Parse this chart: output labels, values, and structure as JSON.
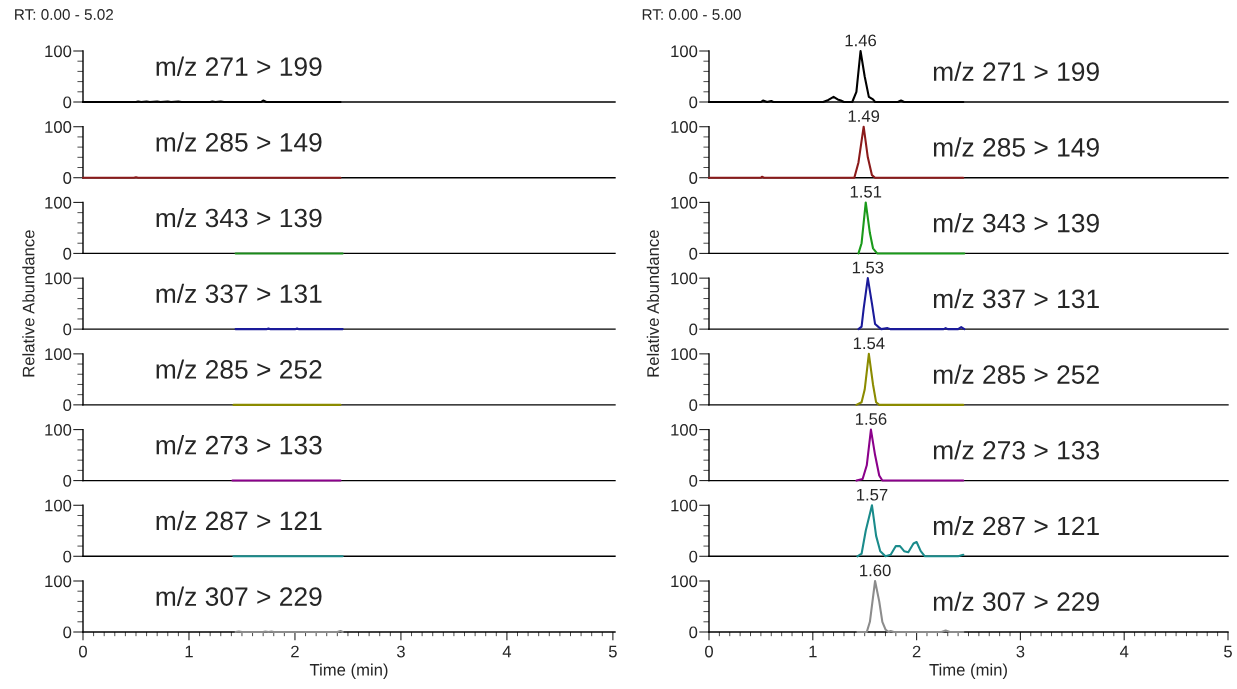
{
  "chart_data": [
    {
      "type": "line",
      "subtitle": "RT: 0.00 - 5.02",
      "xlim": [
        0,
        5.02
      ],
      "ylim": [
        0,
        100
      ],
      "yticks": [
        0,
        100
      ],
      "tick_labels": "y",
      "title": "m/z 271 > 199",
      "x": [
        0,
        0.5,
        0.52,
        0.55,
        0.6,
        0.63,
        0.7,
        0.73,
        0.8,
        0.83,
        0.9,
        0.93,
        1.2,
        1.22,
        1.25,
        1.3,
        1.33,
        1.68,
        1.7,
        1.73,
        2.43
      ],
      "series": [
        {
          "color": "#000000",
          "values": [
            0,
            0,
            1,
            0,
            1,
            0,
            1,
            0,
            1,
            0,
            1,
            0,
            0,
            1,
            0,
            1,
            0,
            0,
            3,
            0,
            0
          ]
        }
      ]
    },
    {
      "type": "line",
      "subtitle": "RT: 0.00 - 5.00",
      "xlim": [
        0,
        5.0
      ],
      "ylim": [
        0,
        100
      ],
      "yticks": [
        0,
        100
      ],
      "tick_labels": "y",
      "title": "m/z 271 > 199",
      "annotations": [
        {
          "text": "1.46",
          "x": 1.46,
          "y": 100
        }
      ],
      "x": [
        0,
        0.5,
        0.52,
        0.56,
        0.6,
        0.62,
        1.1,
        1.15,
        1.2,
        1.24,
        1.27,
        1.3,
        1.38,
        1.42,
        1.46,
        1.5,
        1.54,
        1.58,
        1.6,
        1.82,
        1.85,
        1.88,
        2.45
      ],
      "series": [
        {
          "color": "#000000",
          "values": [
            0,
            0,
            3,
            0,
            2,
            0,
            0,
            4,
            10,
            5,
            3,
            0,
            0,
            20,
            100,
            50,
            10,
            5,
            0,
            0,
            3,
            0,
            0
          ]
        }
      ]
    },
    {
      "type": "line",
      "xlim": [
        0,
        5.02
      ],
      "ylim": [
        0,
        100
      ],
      "yticks": [
        0,
        100
      ],
      "tick_labels": "y",
      "title": "m/z 285 > 149",
      "x": [
        0,
        0.48,
        0.5,
        0.52,
        2.43
      ],
      "series": [
        {
          "color": "#8b1a1a",
          "values": [
            0,
            0,
            1,
            0,
            0
          ]
        }
      ]
    },
    {
      "type": "line",
      "xlim": [
        0,
        5.0
      ],
      "ylim": [
        0,
        100
      ],
      "yticks": [
        0,
        100
      ],
      "tick_labels": "y",
      "title": "m/z 285 > 149",
      "annotations": [
        {
          "text": "1.49",
          "x": 1.49,
          "y": 100
        }
      ],
      "x": [
        0,
        0.5,
        0.51,
        0.53,
        1.4,
        1.44,
        1.49,
        1.53,
        1.57,
        1.6,
        2.45
      ],
      "series": [
        {
          "color": "#8b1a1a",
          "values": [
            0,
            0,
            2,
            0,
            0,
            30,
            100,
            40,
            5,
            0,
            0
          ]
        }
      ]
    },
    {
      "type": "line",
      "xlim": [
        0,
        5.02
      ],
      "ylim": [
        0,
        100
      ],
      "yticks": [
        0,
        100
      ],
      "tick_labels": "y",
      "title": "m/z 343 > 139",
      "x": [
        1.44,
        2.45
      ],
      "series": [
        {
          "color": "#1a8a1a",
          "values": [
            0,
            0
          ]
        }
      ]
    },
    {
      "type": "line",
      "xlim": [
        0,
        5.0
      ],
      "ylim": [
        0,
        100
      ],
      "yticks": [
        0,
        100
      ],
      "tick_labels": "y",
      "title": "m/z 343 > 139",
      "annotations": [
        {
          "text": "1.51",
          "x": 1.51,
          "y": 100
        }
      ],
      "x": [
        1.44,
        1.47,
        1.51,
        1.55,
        1.58,
        1.62,
        2.46
      ],
      "series": [
        {
          "color": "#1a9a1a",
          "values": [
            0,
            20,
            100,
            40,
            10,
            0,
            0
          ]
        }
      ]
    },
    {
      "type": "line",
      "ylabel": "Relative Abundance",
      "xlim": [
        0,
        5.02
      ],
      "ylim": [
        0,
        100
      ],
      "yticks": [
        0,
        100
      ],
      "tick_labels": "y",
      "title": "m/z 337 > 131",
      "x": [
        1.44,
        1.73,
        1.75,
        1.77,
        2.0,
        2.02,
        2.04,
        2.45
      ],
      "series": [
        {
          "color": "#1a1a9a",
          "values": [
            0,
            0,
            1,
            0,
            0,
            1,
            0,
            0
          ]
        }
      ]
    },
    {
      "type": "line",
      "ylabel": "Relative Abundance",
      "xlim": [
        0,
        5.0
      ],
      "ylim": [
        0,
        100
      ],
      "yticks": [
        0,
        100
      ],
      "tick_labels": "y",
      "title": "m/z 337 > 131",
      "annotations": [
        {
          "text": "1.53",
          "x": 1.53,
          "y": 100
        }
      ],
      "x": [
        1.44,
        1.47,
        1.49,
        1.53,
        1.57,
        1.6,
        1.64,
        1.66,
        1.72,
        1.75,
        2.26,
        2.28,
        2.3,
        2.4,
        2.43,
        2.46
      ],
      "series": [
        {
          "color": "#1a1a9a",
          "values": [
            0,
            5,
            40,
            100,
            50,
            10,
            3,
            0,
            2,
            0,
            0,
            2,
            0,
            0,
            4,
            0
          ]
        }
      ]
    },
    {
      "type": "line",
      "xlim": [
        0,
        5.02
      ],
      "ylim": [
        0,
        100
      ],
      "yticks": [
        0,
        100
      ],
      "tick_labels": "y",
      "title": "m/z 285 > 252",
      "x": [
        1.42,
        2.43
      ],
      "series": [
        {
          "color": "#8b8b00",
          "values": [
            0,
            0
          ]
        }
      ]
    },
    {
      "type": "line",
      "xlim": [
        0,
        5.0
      ],
      "ylim": [
        0,
        100
      ],
      "yticks": [
        0,
        100
      ],
      "tick_labels": "y",
      "title": "m/z 285 > 252",
      "annotations": [
        {
          "text": "1.54",
          "x": 1.54,
          "y": 100
        }
      ],
      "x": [
        1.42,
        1.47,
        1.5,
        1.54,
        1.58,
        1.61,
        1.64,
        2.45
      ],
      "series": [
        {
          "color": "#8b8b00",
          "values": [
            0,
            5,
            30,
            100,
            40,
            5,
            0,
            0
          ]
        }
      ]
    },
    {
      "type": "line",
      "xlim": [
        0,
        5.02
      ],
      "ylim": [
        0,
        100
      ],
      "yticks": [
        0,
        100
      ],
      "tick_labels": "y",
      "title": "m/z 273 > 133",
      "x": [
        1.41,
        2.43
      ],
      "series": [
        {
          "color": "#8b008b",
          "values": [
            0,
            0
          ]
        }
      ]
    },
    {
      "type": "line",
      "xlim": [
        0,
        5.0
      ],
      "ylim": [
        0,
        100
      ],
      "yticks": [
        0,
        100
      ],
      "tick_labels": "y",
      "title": "m/z 273 > 133",
      "annotations": [
        {
          "text": "1.56",
          "x": 1.56,
          "y": 100
        }
      ],
      "x": [
        1.42,
        1.48,
        1.52,
        1.56,
        1.6,
        1.64,
        1.67,
        2.45
      ],
      "series": [
        {
          "color": "#8b008b",
          "values": [
            0,
            3,
            30,
            100,
            50,
            10,
            0,
            0
          ]
        }
      ]
    },
    {
      "type": "line",
      "xlim": [
        0,
        5.02
      ],
      "ylim": [
        0,
        100
      ],
      "yticks": [
        0,
        100
      ],
      "tick_labels": "y",
      "title": "m/z 287 > 121",
      "x": [
        1.42,
        2.45
      ],
      "series": [
        {
          "color": "#1a8b8b",
          "values": [
            0,
            0
          ]
        }
      ]
    },
    {
      "type": "line",
      "xlim": [
        0,
        5.0
      ],
      "ylim": [
        0,
        100
      ],
      "yticks": [
        0,
        100
      ],
      "tick_labels": "y",
      "title": "m/z 287 > 121",
      "annotations": [
        {
          "text": "1.57",
          "x": 1.57,
          "y": 100
        }
      ],
      "x": [
        1.43,
        1.47,
        1.51,
        1.57,
        1.61,
        1.65,
        1.7,
        1.75,
        1.8,
        1.84,
        1.88,
        1.92,
        1.97,
        2.0,
        2.04,
        2.08,
        2.4,
        2.45
      ],
      "series": [
        {
          "color": "#1a8b8b",
          "values": [
            0,
            5,
            50,
            100,
            40,
            10,
            0,
            3,
            20,
            20,
            10,
            8,
            25,
            28,
            10,
            0,
            0,
            3
          ]
        }
      ]
    },
    {
      "type": "line",
      "xlabel": "Time (min)",
      "xlim": [
        0,
        5.02
      ],
      "ylim": [
        0,
        100
      ],
      "xticks": [
        0,
        1,
        2,
        3,
        4,
        5
      ],
      "yticks": [
        0,
        100
      ],
      "title": "m/z 307 > 229",
      "x": [
        1.44,
        1.47,
        1.5,
        1.7,
        1.72,
        1.75,
        1.78,
        1.8,
        2.4,
        2.43,
        2.45
      ],
      "series": [
        {
          "color": "#8c8c8c",
          "values": [
            0,
            1,
            0,
            0,
            1,
            0,
            1,
            0,
            0,
            2,
            0
          ]
        }
      ]
    },
    {
      "type": "line",
      "xlabel": "Time (min)",
      "xlim": [
        0,
        5.0
      ],
      "ylim": [
        0,
        100
      ],
      "xticks": [
        0,
        1,
        2,
        3,
        4,
        5
      ],
      "yticks": [
        0,
        100
      ],
      "title": "m/z 307 > 229",
      "annotations": [
        {
          "text": "1.60",
          "x": 1.6,
          "y": 100
        }
      ],
      "x": [
        1.43,
        1.52,
        1.55,
        1.6,
        1.64,
        1.67,
        1.7,
        1.73,
        1.75,
        1.78,
        2.24,
        2.28,
        2.32,
        2.45
      ],
      "series": [
        {
          "color": "#8c8c8c",
          "values": [
            0,
            0,
            20,
            100,
            60,
            20,
            5,
            0,
            2,
            0,
            0,
            3,
            0,
            0
          ]
        }
      ]
    }
  ]
}
